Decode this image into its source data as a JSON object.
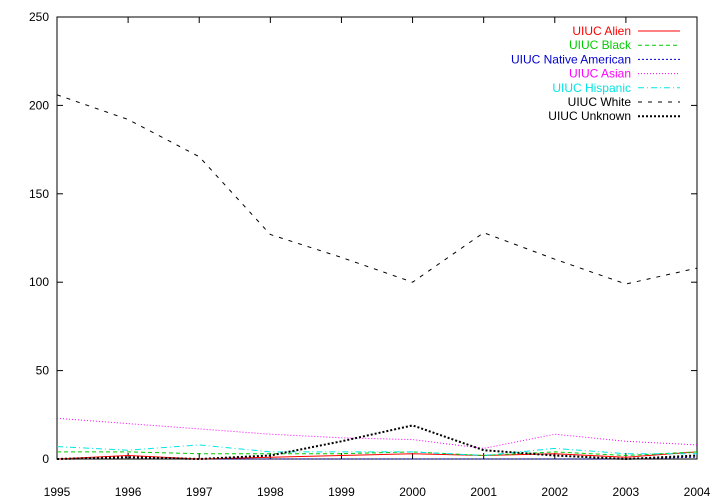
{
  "chart_data": {
    "type": "line",
    "title": "",
    "xlabel": "",
    "ylabel": "",
    "xlim": [
      1995,
      2004
    ],
    "ylim": [
      0,
      250
    ],
    "x_ticks": [
      1995,
      1996,
      1997,
      1998,
      1999,
      2000,
      2001,
      2002,
      2003,
      2004
    ],
    "y_ticks": [
      0,
      50,
      100,
      150,
      200,
      250
    ],
    "grid": false,
    "legend_position": "top-right",
    "x": [
      1995,
      1996,
      1997,
      1998,
      1999,
      2000,
      2001,
      2002,
      2003,
      2004
    ],
    "series": [
      {
        "name": "UIUC Alien",
        "color": "#ff0000",
        "dash": "solid",
        "values": [
          0,
          2,
          0,
          1,
          2,
          3,
          2,
          3,
          1,
          4
        ]
      },
      {
        "name": "UIUC Black",
        "color": "#00cc00",
        "dash": "dashed",
        "values": [
          4,
          4,
          3,
          3,
          3,
          4,
          2,
          4,
          2,
          4
        ]
      },
      {
        "name": "UIUC Native American",
        "color": "#0000cc",
        "dash": "dotted",
        "values": [
          0,
          1,
          0,
          0,
          0,
          0,
          0,
          0,
          0,
          1
        ]
      },
      {
        "name": "UIUC Asian",
        "color": "#ff00ff",
        "dash": "fine-dotted",
        "values": [
          23,
          20,
          17,
          14,
          12,
          11,
          6,
          14,
          10,
          8
        ]
      },
      {
        "name": "UIUC Hispanic",
        "color": "#00e5e5",
        "dash": "dash-dot",
        "values": [
          7,
          5,
          8,
          4,
          4,
          4,
          2,
          6,
          3,
          3
        ]
      },
      {
        "name": "UIUC White",
        "color": "#000000",
        "dash": "dashed-thin",
        "values": [
          206,
          192,
          171,
          127,
          114,
          100,
          128,
          113,
          99,
          108
        ]
      },
      {
        "name": "UIUC Unknown",
        "color": "#000000",
        "dash": "dotted-heavy",
        "values": [
          0,
          1,
          0,
          2,
          10,
          19,
          5,
          2,
          0,
          2
        ]
      }
    ]
  }
}
